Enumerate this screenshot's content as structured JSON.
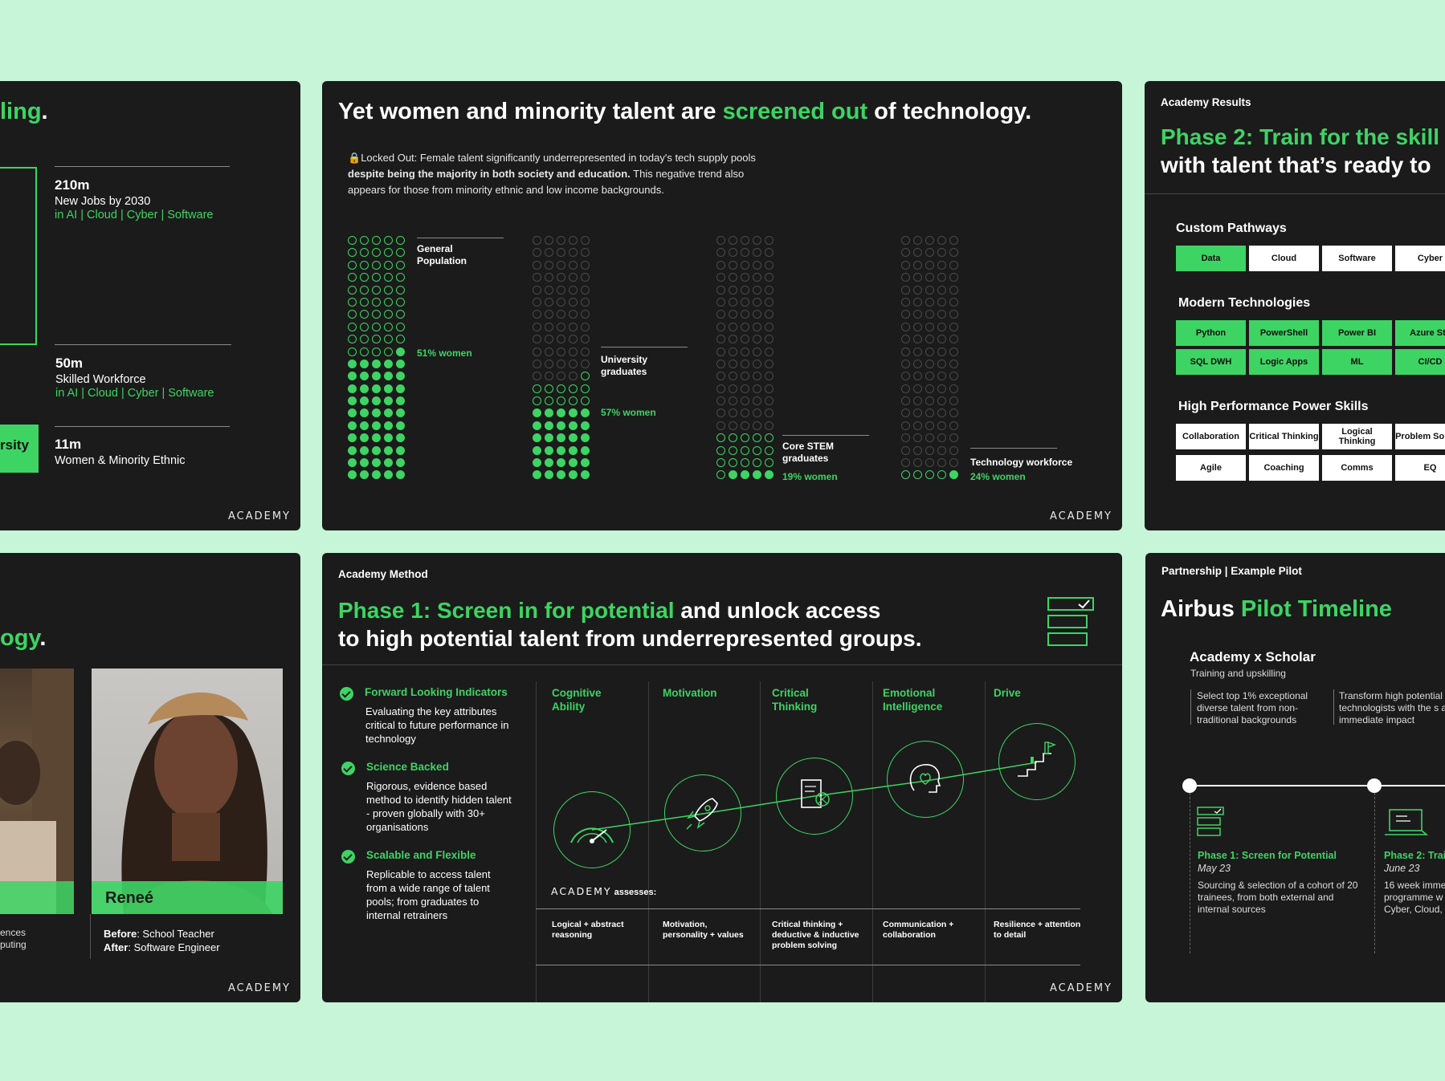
{
  "card1": {
    "title_fragment": "ling",
    "title_period": ".",
    "stats": [
      {
        "value": "210m",
        "label": "New Jobs by 2030",
        "sub": "in AI | Cloud | Cyber | Software"
      },
      {
        "value": "50m",
        "label": "Skilled Workforce",
        "sub": "in AI | Cloud | Cyber | Software"
      },
      {
        "value": "11m",
        "label": "Women & Minority Ethnic",
        "sub": ""
      }
    ],
    "side_label": "rsity",
    "logo": "ACADEMY"
  },
  "card2": {
    "title_a": "Yet women and minority talent are ",
    "title_green": "screened out",
    "title_b": " of technology.",
    "lock_icon": "🔒",
    "intro_a": "Locked Out: Female talent significantly underrepresented in today's tech supply pools ",
    "intro_bold": "despite being the majority in both society and education.",
    "intro_b": " This negative trend also appears for those from minority ethnic and low income backgrounds.",
    "groups": [
      {
        "label": "General Population",
        "pct_label": "51% women",
        "women_pct": 51
      },
      {
        "label": "University graduates",
        "pct_label": "57% women",
        "women_pct": 57
      },
      {
        "label": "Core STEM graduates",
        "pct_label": "19% women",
        "women_pct": 19
      },
      {
        "label": "Technology workforce",
        "pct_label": "24% women",
        "women_pct": 24
      }
    ],
    "logo": "ACADEMY"
  },
  "card3": {
    "eyebrow": "Academy Results",
    "title_green": "Phase 2: Train for the skill",
    "title_white": "with talent that’s ready to",
    "sections": [
      {
        "heading": "Custom Pathways",
        "rows": [
          [
            {
              "t": "Data",
              "g": true
            },
            {
              "t": "Cloud",
              "g": false
            },
            {
              "t": "Software",
              "g": false
            },
            {
              "t": "Cyber",
              "g": false
            }
          ]
        ]
      },
      {
        "heading": "Modern Technologies",
        "rows": [
          [
            {
              "t": "Python",
              "g": true
            },
            {
              "t": "PowerShell",
              "g": true
            },
            {
              "t": "Power BI",
              "g": true
            },
            {
              "t": "Azure Sta",
              "g": true
            }
          ],
          [
            {
              "t": "SQL DWH",
              "g": true
            },
            {
              "t": "Logic Apps",
              "g": true
            },
            {
              "t": "ML",
              "g": true
            },
            {
              "t": "CI/CD",
              "g": true
            }
          ]
        ]
      },
      {
        "heading": "High Performance Power Skills",
        "rows": [
          [
            {
              "t": "Collaboration",
              "g": false
            },
            {
              "t": "Critical Thinking",
              "g": false
            },
            {
              "t": "Logical Thinking",
              "g": false
            },
            {
              "t": "Problem Solving",
              "g": false
            }
          ],
          [
            {
              "t": "Agile",
              "g": false
            },
            {
              "t": "Coaching",
              "g": false
            },
            {
              "t": "Comms",
              "g": false
            },
            {
              "t": "EQ",
              "g": false
            }
          ]
        ]
      }
    ]
  },
  "card4": {
    "title_fragment": "ogy",
    "title_period": ".",
    "name": "Reneé",
    "before_label": "Before",
    "before_value": ": School Teacher",
    "after_label": "After",
    "after_value": ": Software Engineer",
    "left_line1": "ences",
    "left_line2": "puting",
    "logo": "ACADEMY"
  },
  "card5": {
    "eyebrow": "Academy Method",
    "title_green": "Phase 1: Screen in for potential",
    "title_white1": " and unlock access",
    "title_white2": "to high potential talent from underrepresented groups.",
    "features": [
      {
        "title": "Forward Looking Indicators",
        "body": "Evaluating the key attributes critical to future performance in technology"
      },
      {
        "title": "Science Backed",
        "body": "Rigorous, evidence based method to identify hidden talent - proven globally with 30+ organisations"
      },
      {
        "title": "Scalable and Flexible",
        "body": "Replicable to access talent from a wide range of talent pools; from graduates to internal retrainers"
      }
    ],
    "columns": [
      {
        "heading": "Cognitive Ability",
        "desc": "Logical + abstract reasoning",
        "icon": "gauge-icon"
      },
      {
        "heading": "Motivation",
        "desc": "Motivation, personality + values",
        "icon": "rocket-icon"
      },
      {
        "heading": "Critical Thinking",
        "desc": "Critical thinking + deductive & inductive problem solving",
        "icon": "document-network-icon"
      },
      {
        "heading": "Emotional Intelligence",
        "desc": "Communication + collaboration",
        "icon": "head-heart-icon"
      },
      {
        "heading": "Drive",
        "desc": "Resilience + attention to detail",
        "icon": "growth-steps-icon"
      }
    ],
    "assess_brand": "ACADEMY",
    "assess_text": "assesses:",
    "logo": "ACADEMY"
  },
  "card6": {
    "eyebrow": "Partnership | Example Pilot",
    "title_white": "Airbus ",
    "title_green": "Pilot Timeline",
    "sub_title": "Academy x Scholar",
    "sub_caption": "Training and upskilling",
    "points": [
      "Select top 1% exceptional diverse talent from non-traditional backgrounds",
      "Transform high potential technologists with the s an immediate impact"
    ],
    "phases": [
      {
        "title": "Phase 1: Screen for Potential",
        "date": "May 23",
        "body": "Sourcing & selection of a cohort of 20 trainees, from both external and internal sources"
      },
      {
        "title": "Phase 2: Trai",
        "date": "June 23",
        "body": "16 week imme programme w Cyber, Cloud,"
      }
    ]
  }
}
